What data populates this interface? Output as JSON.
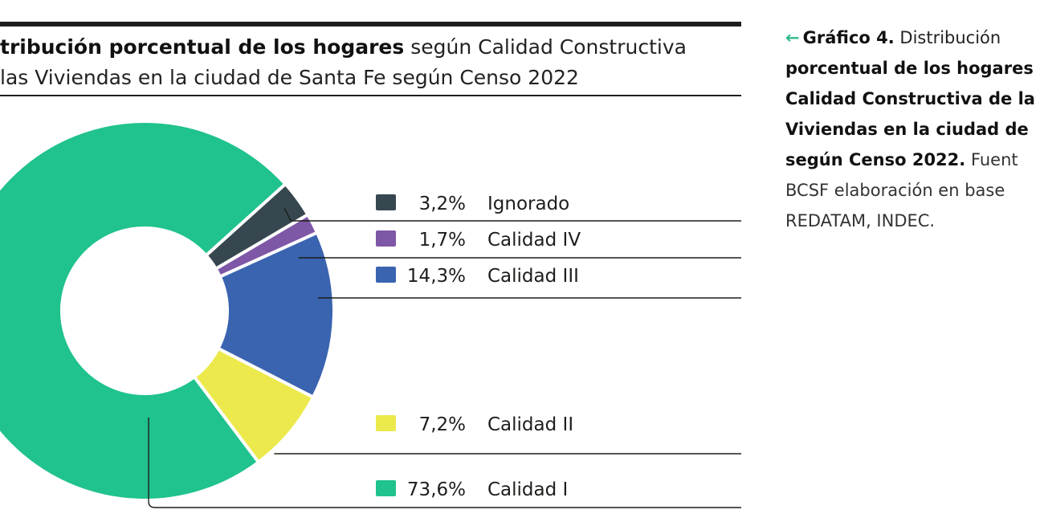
{
  "title": {
    "bold": "tribución porcentual de los hogares",
    "rest_line1": " según Calidad Constructiva",
    "line2": "las Viviendas en la ciudad de Santa Fe según Censo 2022"
  },
  "caption": {
    "icon": "arrow-left-icon",
    "lines": [
      {
        "bold": "Gráfico 4.",
        "normal": " Distribución"
      },
      {
        "bold": "porcentual de los hogares",
        "normal": ""
      },
      {
        "bold": "Calidad Constructiva de la",
        "normal": ""
      },
      {
        "bold": "Viviendas en la ciudad de",
        "normal": ""
      },
      {
        "bold": "según Censo 2022.",
        "normal": " Fuent"
      },
      {
        "bold": "",
        "normal": "BCSF elaboración en base"
      },
      {
        "bold": "",
        "normal": "REDATAM, INDEC."
      }
    ]
  },
  "chart_data": {
    "type": "pie",
    "variant": "donut",
    "slices": [
      {
        "label": "Ignorado",
        "value": 3.2,
        "value_label": "3,2%",
        "color": "#37474f"
      },
      {
        "label": "Calidad IV",
        "value": 1.7,
        "value_label": "1,7%",
        "color": "#7e57a6"
      },
      {
        "label": "Calidad III",
        "value": 14.3,
        "value_label": "14,3%",
        "color": "#3a64b0"
      },
      {
        "label": "Calidad II",
        "value": 7.2,
        "value_label": "7,2%",
        "color": "#ece94c"
      },
      {
        "label": "Calidad I",
        "value": 73.6,
        "value_label": "73,6%",
        "color": "#20c28e"
      }
    ],
    "legend_position": "right"
  }
}
